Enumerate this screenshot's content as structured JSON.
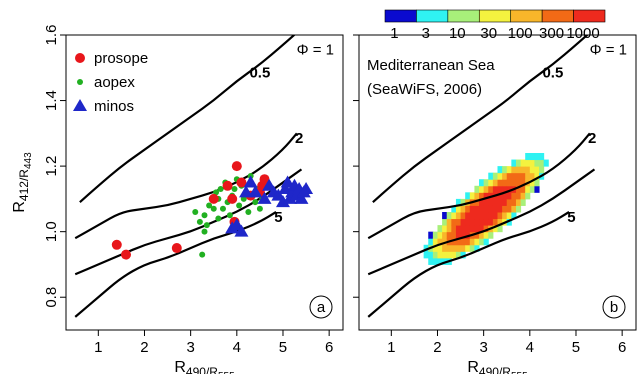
{
  "chart_data": [
    {
      "type": "scatter",
      "panel_label": "a",
      "xlabel": {
        "base": "R",
        "sub": "490/R",
        "sub2": "555"
      },
      "ylabel": {
        "base": "R",
        "sub": "412/R",
        "sub2": "443"
      },
      "xlim": [
        0.3,
        6.3
      ],
      "ylim": [
        0.7,
        1.6
      ],
      "xticks": [
        "1",
        "2",
        "3",
        "4",
        "5",
        "6"
      ],
      "yticks": [
        "0.8",
        "1.0",
        "1.2",
        "1.4",
        "1.6"
      ],
      "legend_position": "top-left",
      "series": [
        {
          "name": "prosope",
          "marker": "circle",
          "color": "#e8161b",
          "points": [
            [
              1.4,
              0.96
            ],
            [
              1.6,
              0.93
            ],
            [
              2.7,
              0.95
            ],
            [
              3.8,
              1.14
            ],
            [
              3.9,
              1.1
            ],
            [
              3.95,
              1.03
            ],
            [
              4.0,
              1.2
            ],
            [
              4.1,
              1.15
            ],
            [
              4.3,
              1.11
            ],
            [
              4.5,
              1.12
            ],
            [
              4.55,
              1.14
            ],
            [
              4.6,
              1.16
            ],
            [
              3.5,
              1.1
            ]
          ]
        },
        {
          "name": "aopex",
          "marker": "dot",
          "color": "#21b021",
          "points": [
            [
              3.1,
              1.06
            ],
            [
              3.2,
              1.03
            ],
            [
              3.25,
              0.93
            ],
            [
              3.3,
              1.05
            ],
            [
              3.35,
              1.02
            ],
            [
              3.4,
              1.08
            ],
            [
              3.5,
              1.07
            ],
            [
              3.55,
              1.12
            ],
            [
              3.6,
              1.1
            ],
            [
              3.65,
              1.13
            ],
            [
              3.7,
              1.07
            ],
            [
              3.75,
              1.15
            ],
            [
              3.8,
              1.09
            ],
            [
              3.85,
              1.05
            ],
            [
              3.9,
              1.11
            ],
            [
              3.95,
              1.13
            ],
            [
              4.0,
              1.16
            ],
            [
              4.05,
              1.08
            ],
            [
              4.1,
              1.14
            ],
            [
              4.15,
              1.1
            ],
            [
              4.2,
              1.12
            ],
            [
              4.25,
              1.06
            ],
            [
              4.3,
              1.17
            ],
            [
              4.35,
              1.11
            ],
            [
              4.4,
              1.09
            ],
            [
              4.45,
              1.13
            ],
            [
              4.5,
              1.07
            ],
            [
              4.55,
              1.1
            ],
            [
              3.3,
              1.0
            ],
            [
              3.6,
              1.04
            ]
          ]
        },
        {
          "name": "minos",
          "marker": "triangle",
          "color": "#1f27c9",
          "points": [
            [
              3.9,
              1.01
            ],
            [
              4.0,
              1.02
            ],
            [
              4.1,
              1.0
            ],
            [
              4.2,
              1.12
            ],
            [
              4.4,
              1.12
            ],
            [
              4.6,
              1.1
            ],
            [
              4.8,
              1.12
            ],
            [
              4.9,
              1.11
            ],
            [
              5.0,
              1.09
            ],
            [
              5.05,
              1.13
            ],
            [
              5.1,
              1.15
            ],
            [
              5.15,
              1.1
            ],
            [
              5.2,
              1.12
            ],
            [
              5.25,
              1.14
            ],
            [
              5.3,
              1.11
            ],
            [
              5.35,
              1.13
            ],
            [
              5.4,
              1.1
            ],
            [
              5.45,
              1.12
            ],
            [
              5.5,
              1.13
            ],
            [
              4.7,
              1.14
            ],
            [
              4.3,
              1.15
            ]
          ]
        }
      ],
      "curves": [
        {
          "label": "0.5",
          "points": [
            [
              0.6,
              1.09
            ],
            [
              1.0,
              1.14
            ],
            [
              1.5,
              1.2
            ],
            [
              2.0,
              1.25
            ],
            [
              2.5,
              1.3
            ],
            [
              3.0,
              1.35
            ],
            [
              3.5,
              1.4
            ],
            [
              4.0,
              1.46
            ],
            [
              4.5,
              1.51
            ],
            [
              5.0,
              1.57
            ],
            [
              5.4,
              1.62
            ]
          ]
        },
        {
          "label": "2",
          "points": [
            [
              0.5,
              0.98
            ],
            [
              1.0,
              1.02
            ],
            [
              1.5,
              1.06
            ],
            [
              2.0,
              1.07
            ],
            [
              2.5,
              1.08
            ],
            [
              3.0,
              1.1
            ],
            [
              3.5,
              1.12
            ],
            [
              4.0,
              1.15
            ],
            [
              4.5,
              1.19
            ],
            [
              5.0,
              1.25
            ],
            [
              5.3,
              1.3
            ]
          ]
        },
        {
          "label": "",
          "points": [
            [
              0.5,
              0.87
            ],
            [
              1.0,
              0.9
            ],
            [
              1.5,
              0.93
            ],
            [
              2.0,
              0.96
            ],
            [
              2.5,
              0.98
            ],
            [
              3.0,
              1.0
            ],
            [
              3.5,
              1.03
            ],
            [
              4.0,
              1.06
            ],
            [
              4.5,
              1.1
            ],
            [
              5.0,
              1.15
            ],
            [
              5.4,
              1.19
            ]
          ]
        },
        {
          "label": "5",
          "points": [
            [
              0.5,
              0.74
            ],
            [
              1.0,
              0.8
            ],
            [
              1.5,
              0.86
            ],
            [
              2.0,
              0.9
            ],
            [
              2.5,
              0.92
            ],
            [
              3.0,
              0.95
            ],
            [
              3.5,
              0.98
            ],
            [
              4.0,
              1.0
            ],
            [
              4.5,
              1.03
            ],
            [
              4.85,
              1.06
            ]
          ]
        }
      ],
      "phi_label": "Φ = 1"
    },
    {
      "type": "heatmap",
      "panel_label": "b",
      "annotation": [
        "Mediterranean Sea",
        "(SeaWiFS, 2006)"
      ],
      "xlabel": {
        "base": "R",
        "sub": "490/R",
        "sub2": "555"
      },
      "xlim": [
        0.3,
        6.3
      ],
      "ylim": [
        0.7,
        1.6
      ],
      "xticks": [
        "1",
        "2",
        "3",
        "4",
        "5",
        "6"
      ],
      "colorbar": {
        "labels": [
          "1",
          "3",
          "10",
          "30",
          "100",
          "300",
          "1000"
        ],
        "colors": [
          "#0a0acf",
          "#2ff2f2",
          "#a8f07a",
          "#f4f23f",
          "#f8b62a",
          "#f26a16",
          "#ee2a1e"
        ]
      },
      "bins": {
        "x0": 0.9,
        "dx": 0.1,
        "y0": 0.8,
        "dy": 0.02
      },
      "curves": [
        {
          "label": "0.5",
          "points": [
            [
              0.6,
              1.09
            ],
            [
              1.0,
              1.14
            ],
            [
              1.5,
              1.2
            ],
            [
              2.0,
              1.25
            ],
            [
              2.5,
              1.3
            ],
            [
              3.0,
              1.35
            ],
            [
              3.5,
              1.4
            ],
            [
              4.0,
              1.46
            ],
            [
              4.5,
              1.51
            ],
            [
              5.0,
              1.57
            ],
            [
              5.4,
              1.62
            ]
          ]
        },
        {
          "label": "2",
          "points": [
            [
              0.5,
              0.98
            ],
            [
              1.0,
              1.02
            ],
            [
              1.5,
              1.06
            ],
            [
              2.0,
              1.07
            ],
            [
              2.5,
              1.08
            ],
            [
              3.0,
              1.1
            ],
            [
              3.5,
              1.12
            ],
            [
              4.0,
              1.15
            ],
            [
              4.5,
              1.19
            ],
            [
              5.0,
              1.25
            ],
            [
              5.3,
              1.3
            ]
          ]
        },
        {
          "label": "",
          "points": [
            [
              0.5,
              0.87
            ],
            [
              1.0,
              0.9
            ],
            [
              1.5,
              0.93
            ],
            [
              2.0,
              0.96
            ],
            [
              2.5,
              0.98
            ],
            [
              3.0,
              1.0
            ],
            [
              3.5,
              1.03
            ],
            [
              4.0,
              1.06
            ],
            [
              4.5,
              1.1
            ],
            [
              5.0,
              1.15
            ],
            [
              5.4,
              1.19
            ]
          ]
        },
        {
          "label": "5",
          "points": [
            [
              0.5,
              0.74
            ],
            [
              1.0,
              0.8
            ],
            [
              1.5,
              0.86
            ],
            [
              2.0,
              0.9
            ],
            [
              2.5,
              0.92
            ],
            [
              3.0,
              0.95
            ],
            [
              3.5,
              0.98
            ],
            [
              4.0,
              1.0
            ],
            [
              4.5,
              1.03
            ],
            [
              4.85,
              1.06
            ]
          ]
        }
      ],
      "phi_label": "Φ = 1"
    }
  ]
}
